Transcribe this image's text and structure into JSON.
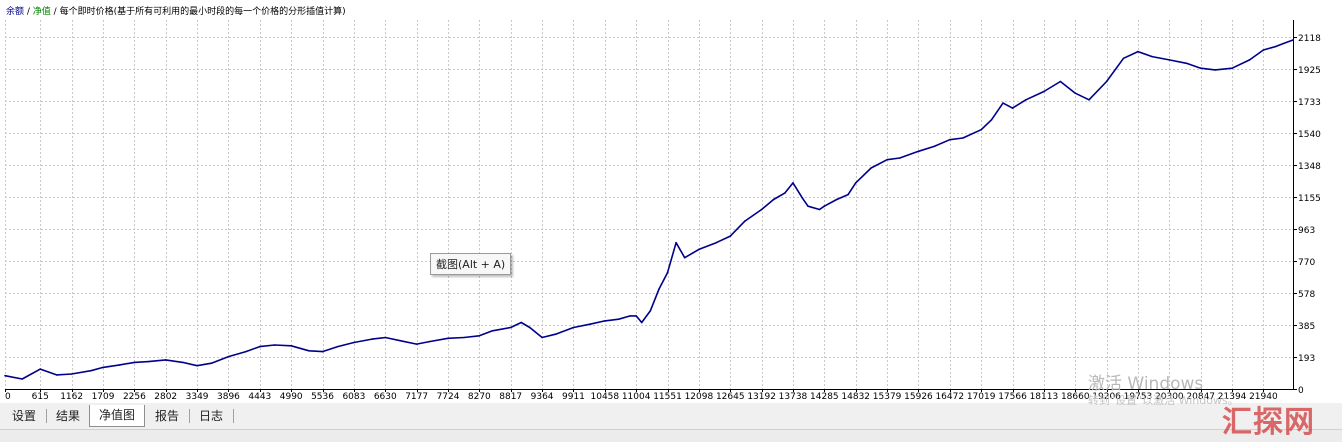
{
  "legend": {
    "item1": "余额",
    "sep1": " / ",
    "item2": "净值",
    "sep2": " / ",
    "desc": "每个即时价格(基于所有可利用的最小时段的每一个价格的分形插值计算)"
  },
  "tooltip": "截图(Alt + A)",
  "watermark": {
    "title": "激活 Windows",
    "sub": "转到\"设置\"以激活 Windows。"
  },
  "brand": "汇探网",
  "tabs": [
    {
      "label": "设置"
    },
    {
      "label": "结果"
    },
    {
      "label": "净值图",
      "active": true
    },
    {
      "label": "报告"
    },
    {
      "label": "日志"
    }
  ],
  "colors": {
    "line": "#00008b",
    "grid": "#c8c8c8",
    "axis": "#000000",
    "balance_legend": "#00008b",
    "equity_legend": "#008000"
  },
  "chart_data": {
    "type": "line",
    "grid": true,
    "x_ticks": [
      0,
      615,
      1162,
      1709,
      2256,
      2802,
      3349,
      3896,
      4443,
      4990,
      5536,
      6083,
      6630,
      7177,
      7724,
      8270,
      8817,
      9364,
      9911,
      10458,
      11004,
      11551,
      12098,
      12645,
      13192,
      13738,
      14285,
      14832,
      15379,
      15926,
      16472,
      17019,
      17566,
      18113,
      18660,
      19206,
      19753,
      20300,
      20847,
      21394,
      21940
    ],
    "y_ticks": [
      0,
      193,
      385,
      578,
      770,
      963,
      1155,
      1348,
      1540,
      1733,
      1925,
      2118
    ],
    "xlim": [
      0,
      22456
    ],
    "ylim": [
      0,
      2118
    ],
    "series": [
      {
        "x": [
          0,
          300,
          615,
          900,
          1162,
          1500,
          1709,
          2000,
          2256,
          2500,
          2802,
          3100,
          3349,
          3600,
          3896,
          4200,
          4443,
          4700,
          4990,
          5300,
          5536,
          5800,
          6083,
          6400,
          6630,
          6900,
          7177,
          7400,
          7724,
          8000,
          8270,
          8500,
          8817,
          9000,
          9150,
          9364,
          9600,
          9911,
          10200,
          10458,
          10700,
          10900,
          11004,
          11100,
          11250,
          11400,
          11551,
          11700,
          11850,
          12000,
          12098,
          12400,
          12645,
          12900,
          13192,
          13400,
          13600,
          13738,
          13900,
          14000,
          14200,
          14285,
          14500,
          14700,
          14832,
          15100,
          15379,
          15600,
          15926,
          16200,
          16472,
          16700,
          17019,
          17200,
          17400,
          17566,
          17800,
          18113,
          18400,
          18660,
          18900,
          19206,
          19500,
          19753,
          20000,
          20300,
          20600,
          20847,
          21100,
          21394,
          21700,
          21940,
          22150,
          22300,
          22456
        ],
        "y": [
          80,
          60,
          120,
          85,
          90,
          110,
          130,
          145,
          160,
          165,
          175,
          160,
          140,
          155,
          195,
          225,
          255,
          265,
          260,
          230,
          225,
          255,
          280,
          300,
          310,
          290,
          270,
          285,
          305,
          310,
          320,
          350,
          370,
          400,
          370,
          310,
          330,
          370,
          390,
          410,
          420,
          440,
          440,
          400,
          470,
          600,
          700,
          880,
          790,
          820,
          840,
          880,
          920,
          1010,
          1080,
          1140,
          1180,
          1240,
          1150,
          1100,
          1080,
          1100,
          1140,
          1170,
          1240,
          1330,
          1380,
          1390,
          1430,
          1460,
          1500,
          1510,
          1560,
          1620,
          1720,
          1690,
          1740,
          1790,
          1850,
          1780,
          1740,
          1850,
          1990,
          2030,
          2000,
          1980,
          1960,
          1930,
          1920,
          1930,
          1980,
          2040,
          2060,
          2080,
          2100
        ]
      }
    ]
  }
}
